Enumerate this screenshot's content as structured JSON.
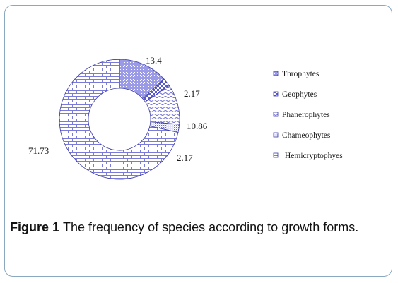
{
  "caption": {
    "label": "Figure 1",
    "text": "The frequency of species according to growth forms."
  },
  "chart_data": {
    "type": "pie",
    "subtype": "donut",
    "categories": [
      "Throphytes",
      "Geophytes",
      "Phanerophytes",
      "Chameophytes",
      "Hemicryptophyes"
    ],
    "values": [
      13.4,
      2.17,
      10.86,
      2.17,
      71.73
    ],
    "value_labels": [
      "13.4",
      "2.17",
      "10.86",
      "2.17",
      "71.73"
    ],
    "legend_position": "right",
    "fill_patterns": [
      "dotted-hatch",
      "checker",
      "wave",
      "dense-dots",
      "brick"
    ],
    "accent_color": "#4a4ac8"
  }
}
